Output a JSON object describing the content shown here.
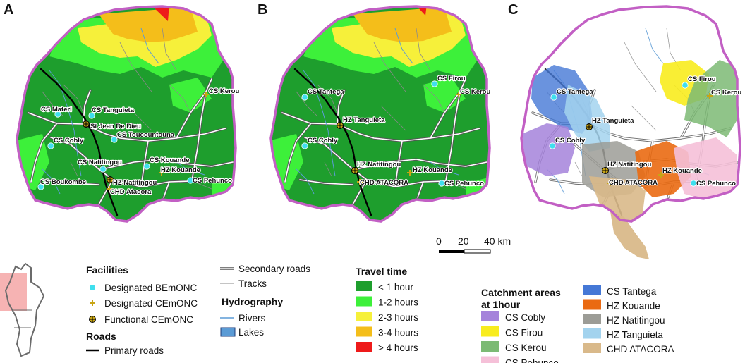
{
  "panels": {
    "a": "A",
    "b": "B",
    "c": "C"
  },
  "panel_a_labels": {
    "cs_materi": "CS Materi",
    "cs_tanguieta": "CS Tanguieta",
    "st_jean": "St Jean De Dieu",
    "cs_toucountouna": "CS Toucountouna",
    "cs_cobly": "CS Cobly",
    "cs_natitingou": "CS Natitingou",
    "cs_kouande": "CS Kouande",
    "hz_kouande": "HZ Kouande",
    "cs_boukombe": "CS Boukombe",
    "hz_natitingou": "HZ Natitingou",
    "chd_atacora": "CHD Atacora",
    "cs_pehunco": "CS Pehunco",
    "cs_kerou": "CS Kerou"
  },
  "panel_b_labels": {
    "cs_tantega": "CS Tantega",
    "cs_firou": "CS Firou",
    "cs_kerou": "CS Kerou",
    "hz_tanguieta": "HZ Tanguieta",
    "cs_cobly": "CS Cobly",
    "hz_natitingou": "HZ Natitingou",
    "hz_kouande": "HZ Kouande",
    "chd_atacora": "CHD ATACORA",
    "cs_pehunco": "CS Pehunco"
  },
  "panel_c_labels": {
    "cs_tantega": "CS Tantega",
    "cs_firou": "CS Firou",
    "cs_kerou": "CS Kerou",
    "hz_tanguieta": "HZ Tanguieta",
    "cs_cobly": "CS Cobly",
    "hz_natitingou": "HZ Natitingou",
    "hz_kouande": "HZ Kouande",
    "chd_atacora": "CHD ATACORA",
    "cs_pehunco": "CS Pehunco"
  },
  "scale_bar": {
    "zero": "0",
    "mid": "20",
    "end": "40 km"
  },
  "legend": {
    "facilities_title": "Facilities",
    "facilities": [
      "Designated BEmONC",
      "Designated CEmONC",
      "Functional CEmONC"
    ],
    "roads_title": "Roads",
    "primary_roads": "Primary roads",
    "secondary_roads": "Secondary roads",
    "tracks": "Tracks",
    "hydro_title": "Hydrography",
    "rivers": "Rivers",
    "lakes": "Lakes",
    "travel_title": "Travel time",
    "travel": [
      {
        "label": "< 1 hour",
        "color": "#1e9e2d"
      },
      {
        "label": "1-2 hours",
        "color": "#3df03a"
      },
      {
        "label": "2-3 hours",
        "color": "#f6f03a"
      },
      {
        "label": "3-4 hours",
        "color": "#f4be1a"
      },
      {
        "label": "> 4 hours",
        "color": "#ee1a1a"
      }
    ],
    "catch_title_1": "Catchment areas",
    "catch_title_2": "at 1hour",
    "catchment_left": [
      {
        "label": "CS Cobly",
        "color": "#a583db"
      },
      {
        "label": "CS Firou",
        "color": "#f8ec1e"
      },
      {
        "label": "CS Kerou",
        "color": "#7cba74"
      },
      {
        "label": "CS Pehunco",
        "color": "#f5c0d8"
      }
    ],
    "catchment_right": [
      {
        "label": "CS Tantega",
        "color": "#4578d6"
      },
      {
        "label": "HZ Kouande",
        "color": "#ea6a12"
      },
      {
        "label": "HZ Natitingou",
        "color": "#9c9c96"
      },
      {
        "label": "HZ Tanguieta",
        "color": "#a3d3ee"
      },
      {
        "label": "CHD ATACORA",
        "color": "#d9b98a"
      }
    ]
  },
  "colors": {
    "boundary": "#c25fc4",
    "bemonc": "#3fdfee",
    "cemonc": "#c8a514",
    "river": "#5b9bd5",
    "lake": "#5b9bd5"
  }
}
